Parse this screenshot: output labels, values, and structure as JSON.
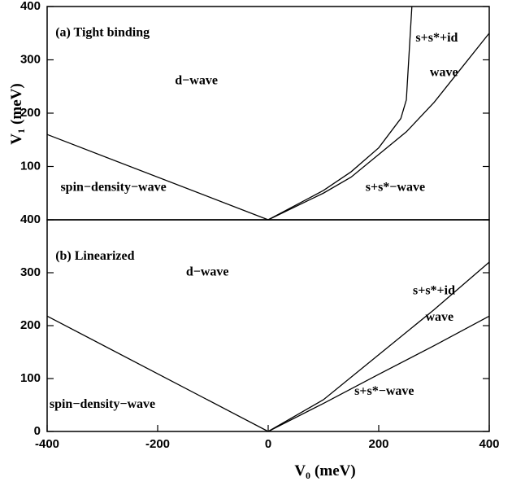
{
  "chart_data": [
    {
      "type": "line",
      "title": "(a) Tight binding",
      "ylabel": [
        "V",
        "1",
        "(meV)"
      ],
      "xlim": [
        -400,
        400
      ],
      "ylim": [
        0,
        400
      ],
      "yticks": [
        100,
        200,
        300,
        400
      ],
      "annotations": [
        "d−wave",
        "s+s*+id",
        "wave",
        "s+s*−wave",
        "spin−density−wave"
      ],
      "series": [
        {
          "color": "#000000",
          "x": [
            -400,
            0
          ],
          "values": [
            160,
            0
          ]
        },
        {
          "color": "#000000",
          "x": [
            0,
            100,
            150,
            200,
            240,
            250,
            260
          ],
          "values": [
            0,
            55,
            90,
            135,
            190,
            225,
            400
          ]
        },
        {
          "color": "#000000",
          "x": [
            0,
            100,
            150,
            250,
            300,
            350,
            400
          ],
          "values": [
            0,
            50,
            80,
            165,
            220,
            285,
            350
          ]
        }
      ]
    },
    {
      "type": "line",
      "title": "(b) Linearized",
      "xlabel": [
        "V",
        "0",
        "(meV)"
      ],
      "xlim": [
        -400,
        400
      ],
      "ylim": [
        0,
        400
      ],
      "xticks": [
        -400,
        -200,
        0,
        200,
        400
      ],
      "yticks": [
        0,
        100,
        200,
        300,
        400
      ],
      "annotations": [
        "d−wave",
        "s+s*+id",
        "wave",
        "s+s*−wave",
        "spin−density−wave"
      ],
      "series": [
        {
          "color": "#000000",
          "x": [
            -400,
            0
          ],
          "values": [
            218,
            0
          ]
        },
        {
          "color": "#000000",
          "x": [
            0,
            100,
            200,
            300,
            400
          ],
          "values": [
            0,
            60,
            145,
            230,
            320
          ]
        },
        {
          "color": "#000000",
          "x": [
            0,
            100,
            200,
            300,
            400
          ],
          "values": [
            0,
            53,
            108,
            162,
            218
          ]
        }
      ]
    }
  ]
}
